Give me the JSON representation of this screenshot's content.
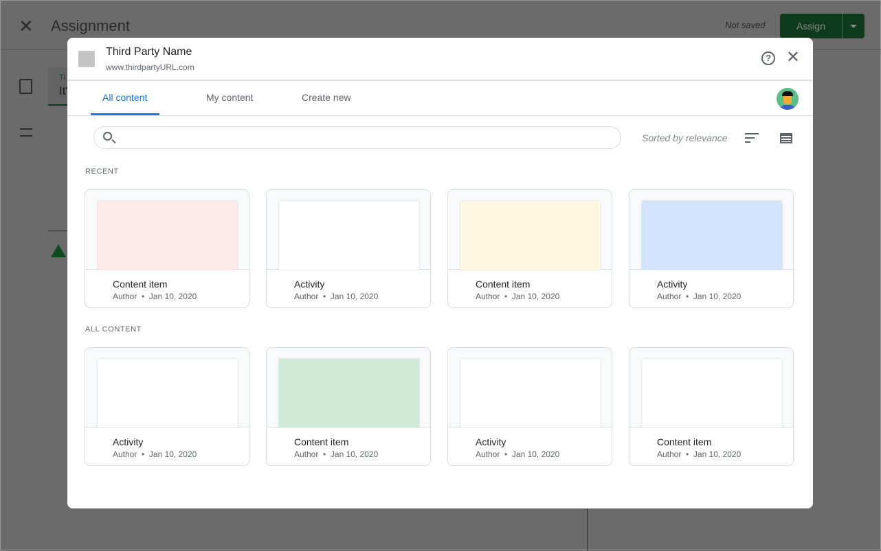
{
  "background_page": {
    "title": "Assignment",
    "status": "Not saved",
    "assign_label": "Assign",
    "card_label": "Ti",
    "card_value": "It'"
  },
  "dialog": {
    "provider_name": "Third Party Name",
    "provider_url": "www.thirdpartyURL.com",
    "help_icon": "help-circle-icon",
    "close_icon": "close-icon"
  },
  "tabs": [
    {
      "label": "All content",
      "active": true
    },
    {
      "label": "My content",
      "active": false
    },
    {
      "label": "Create new",
      "active": false
    }
  ],
  "search": {
    "placeholder": "",
    "value": ""
  },
  "sort_label": "Sorted by relevance",
  "colors": {
    "accent": "#1a73e8",
    "assign_green": "#1e8e3e"
  },
  "sections": [
    {
      "heading": "RECENT",
      "items": [
        {
          "title": "Content item",
          "author": "Author",
          "date": "Jan 10, 2020",
          "thumb_color": "#fce8e6"
        },
        {
          "title": "Activity",
          "author": "Author",
          "date": "Jan 10, 2020",
          "thumb_color": "#ffffff"
        },
        {
          "title": "Content item",
          "author": "Author",
          "date": "Jan 10, 2020",
          "thumb_color": "#fef7e0"
        },
        {
          "title": "Activity",
          "author": "Author",
          "date": "Jan 10, 2020",
          "thumb_color": "#d2e3fc"
        }
      ]
    },
    {
      "heading": "ALL CONTENT",
      "items": [
        {
          "title": "Activity",
          "author": "Author",
          "date": "Jan 10, 2020",
          "thumb_color": "#ffffff"
        },
        {
          "title": "Content item",
          "author": "Author",
          "date": "Jan 10, 2020",
          "thumb_color": "#ceead6"
        },
        {
          "title": "Activity",
          "author": "Author",
          "date": "Jan 10, 2020",
          "thumb_color": "#ffffff"
        },
        {
          "title": "Content item",
          "author": "Author",
          "date": "Jan 10, 2020",
          "thumb_color": "#ffffff"
        }
      ]
    }
  ]
}
